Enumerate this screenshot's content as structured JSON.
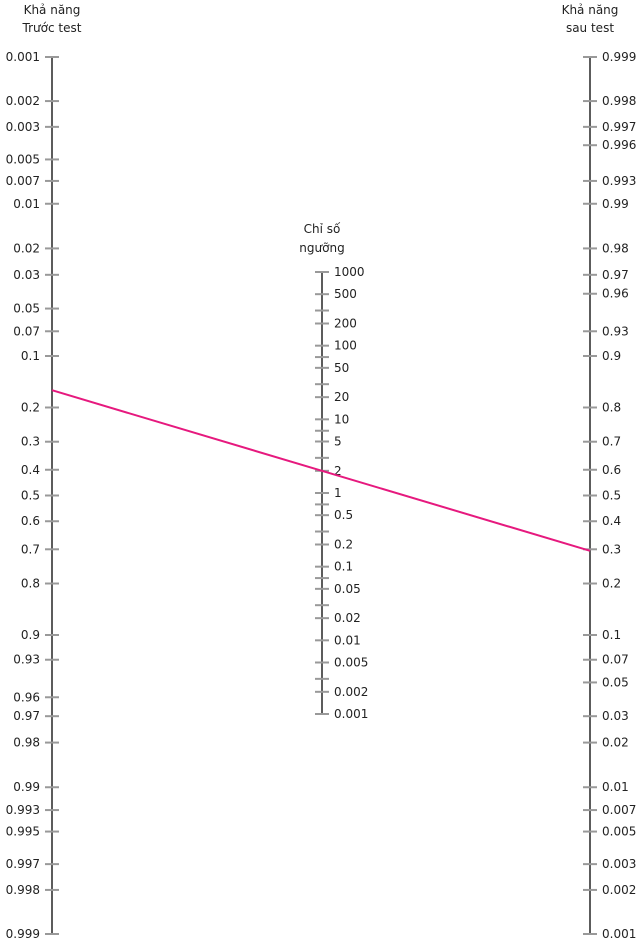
{
  "axes": {
    "left": {
      "title_lines": [
        "Khả năng",
        "Trước test"
      ],
      "ticks": [
        {
          "label": "0.001",
          "value": 0.001
        },
        {
          "label": "0.002",
          "value": 0.002
        },
        {
          "label": "0.003",
          "value": 0.003
        },
        {
          "label": "0.005",
          "value": 0.005
        },
        {
          "label": "0.007",
          "value": 0.007
        },
        {
          "label": "0.01",
          "value": 0.01
        },
        {
          "label": "0.02",
          "value": 0.02
        },
        {
          "label": "0.03",
          "value": 0.03
        },
        {
          "label": "0.05",
          "value": 0.05
        },
        {
          "label": "0.07",
          "value": 0.07
        },
        {
          "label": "0.1",
          "value": 0.1
        },
        {
          "label": "0.2",
          "value": 0.2
        },
        {
          "label": "0.3",
          "value": 0.3
        },
        {
          "label": "0.4",
          "value": 0.4
        },
        {
          "label": "0.5",
          "value": 0.5
        },
        {
          "label": "0.6",
          "value": 0.6
        },
        {
          "label": "0.7",
          "value": 0.7
        },
        {
          "label": "0.8",
          "value": 0.8
        },
        {
          "label": "0.9",
          "value": 0.9
        },
        {
          "label": "0.93",
          "value": 0.93
        },
        {
          "label": "0.96",
          "value": 0.96
        },
        {
          "label": "0.97",
          "value": 0.97
        },
        {
          "label": "0.98",
          "value": 0.98
        },
        {
          "label": "0.99",
          "value": 0.99
        },
        {
          "label": "0.993",
          "value": 0.993
        },
        {
          "label": "0.995",
          "value": 0.995
        },
        {
          "label": "0.997",
          "value": 0.997
        },
        {
          "label": "0.998",
          "value": 0.998
        },
        {
          "label": "0.999",
          "value": 0.999
        }
      ]
    },
    "middle": {
      "title_lines": [
        "Chỉ số",
        "ngưỡng"
      ],
      "ticks": [
        {
          "label": "1000",
          "value": 1000
        },
        {
          "label": "500",
          "value": 500
        },
        {
          "label": "",
          "value": 300
        },
        {
          "label": "200",
          "value": 200
        },
        {
          "label": "100",
          "value": 100
        },
        {
          "label": "",
          "value": 70
        },
        {
          "label": "50",
          "value": 50
        },
        {
          "label": "",
          "value": 30
        },
        {
          "label": "20",
          "value": 20
        },
        {
          "label": "10",
          "value": 10
        },
        {
          "label": "",
          "value": 7
        },
        {
          "label": "5",
          "value": 5
        },
        {
          "label": "",
          "value": 3
        },
        {
          "label": "2",
          "value": 2
        },
        {
          "label": "1",
          "value": 1
        },
        {
          "label": "",
          "value": 0.7
        },
        {
          "label": "0.5",
          "value": 0.5
        },
        {
          "label": "",
          "value": 0.3
        },
        {
          "label": "0.2",
          "value": 0.2
        },
        {
          "label": "0.1",
          "value": 0.1
        },
        {
          "label": "",
          "value": 0.07
        },
        {
          "label": "0.05",
          "value": 0.05
        },
        {
          "label": "",
          "value": 0.03
        },
        {
          "label": "0.02",
          "value": 0.02
        },
        {
          "label": "0.01",
          "value": 0.01
        },
        {
          "label": "0.005",
          "value": 0.005
        },
        {
          "label": "",
          "value": 0.003
        },
        {
          "label": "0.002",
          "value": 0.002
        },
        {
          "label": "0.001",
          "value": 0.001
        }
      ]
    },
    "right": {
      "title_lines": [
        "Khả năng",
        "sau test"
      ],
      "ticks": [
        {
          "label": "0.999",
          "value": 0.999
        },
        {
          "label": "0.998",
          "value": 0.998
        },
        {
          "label": "0.997",
          "value": 0.997
        },
        {
          "label": "0.996",
          "value": 0.996
        },
        {
          "label": "0.993",
          "value": 0.993
        },
        {
          "label": "0.99",
          "value": 0.99
        },
        {
          "label": "0.98",
          "value": 0.98
        },
        {
          "label": "0.97",
          "value": 0.97
        },
        {
          "label": "0.96",
          "value": 0.96
        },
        {
          "label": "0.93",
          "value": 0.93
        },
        {
          "label": "0.9",
          "value": 0.9
        },
        {
          "label": "0.8",
          "value": 0.8
        },
        {
          "label": "0.7",
          "value": 0.7
        },
        {
          "label": "0.6",
          "value": 0.6
        },
        {
          "label": "0.5",
          "value": 0.5
        },
        {
          "label": "0.4",
          "value": 0.4
        },
        {
          "label": "0.3",
          "value": 0.3
        },
        {
          "label": "0.2",
          "value": 0.2
        },
        {
          "label": "0.1",
          "value": 0.1
        },
        {
          "label": "0.07",
          "value": 0.07
        },
        {
          "label": "0.05",
          "value": 0.05
        },
        {
          "label": "0.03",
          "value": 0.03
        },
        {
          "label": "0.02",
          "value": 0.02
        },
        {
          "label": "0.01",
          "value": 0.01
        },
        {
          "label": "0.007",
          "value": 0.007
        },
        {
          "label": "0.005",
          "value": 0.005
        },
        {
          "label": "0.003",
          "value": 0.003
        },
        {
          "label": "0.002",
          "value": 0.002
        },
        {
          "label": "0.001",
          "value": 0.001
        }
      ]
    }
  },
  "nomogram_line": {
    "pretest_probability": 0.16,
    "likelihood_ratio": 2,
    "posttest_probability": 0.27
  },
  "colors": {
    "axis": "#333333",
    "tick": "#999999",
    "line": "#e6197e",
    "text": "#222222"
  }
}
